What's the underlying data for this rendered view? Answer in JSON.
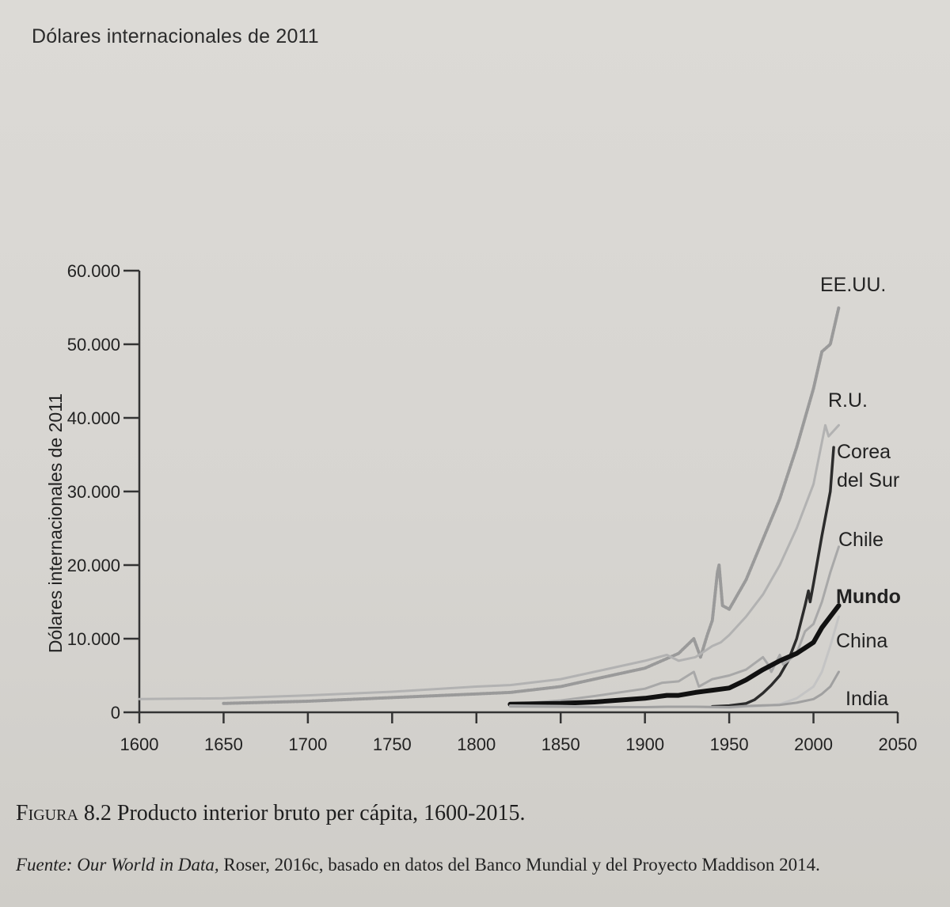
{
  "header": {
    "title": "Dólares internacionales de 2011"
  },
  "caption": {
    "figure_label": "Figura 8.2",
    "text": "Producto interior bruto per cápita, 1600-2015."
  },
  "source": {
    "label": "Fuente:",
    "italic_title": "Our World in Data,",
    "text": "Roser, 2016c, basado en datos del Banco Mundial y del Proyecto Maddison 2014."
  },
  "chart_data": {
    "type": "line",
    "title": "Producto interior bruto per cápita, 1600-2015.",
    "xlabel": "",
    "ylabel": "Dólares internacionales de 2011",
    "xlim": [
      1600,
      2050
    ],
    "ylim": [
      0,
      60000
    ],
    "xticks": [
      1600,
      1650,
      1700,
      1750,
      1800,
      1850,
      1900,
      1950,
      2000,
      2050
    ],
    "xtick_labels": [
      "1600",
      "1650",
      "1700",
      "1750",
      "1800",
      "1850",
      "1900",
      "1950",
      "2000",
      "2050"
    ],
    "yticks": [
      0,
      10000,
      20000,
      30000,
      40000,
      50000,
      60000
    ],
    "ytick_labels": [
      "0",
      "10.000",
      "20.000",
      "30.000",
      "40.000",
      "50.000",
      "60.000"
    ],
    "grid": false,
    "legend": "direct labels at line ends (right)",
    "series": [
      {
        "name": "EE.UU.",
        "color": "#9a9a9a",
        "dash": "dotted",
        "width": 4,
        "x": [
          1650,
          1700,
          1750,
          1800,
          1820,
          1850,
          1870,
          1900,
          1910,
          1920,
          1929,
          1933,
          1937,
          1940,
          1943,
          1944,
          1946,
          1950,
          1960,
          1970,
          1980,
          1990,
          2000,
          2005,
          2010,
          2015
        ],
        "y": [
          1200,
          1500,
          2000,
          2500,
          2700,
          3500,
          4500,
          6000,
          7000,
          8000,
          10000,
          7500,
          10500,
          12500,
          19000,
          20000,
          14500,
          14000,
          18000,
          23500,
          29000,
          36000,
          44000,
          49000,
          50000,
          55000
        ]
      },
      {
        "name": "R.U.",
        "color": "#b2b2b2",
        "dash": "solid",
        "width": 3,
        "x": [
          1600,
          1650,
          1700,
          1750,
          1800,
          1820,
          1850,
          1870,
          1900,
          1913,
          1920,
          1930,
          1940,
          1945,
          1950,
          1960,
          1970,
          1980,
          1990,
          2000,
          2007,
          2009,
          2015
        ],
        "y": [
          1800,
          1900,
          2300,
          2800,
          3500,
          3700,
          4500,
          5500,
          7000,
          7800,
          7000,
          7500,
          9000,
          9500,
          10500,
          13000,
          16000,
          20000,
          25000,
          31000,
          39000,
          37500,
          39000
        ]
      },
      {
        "name": "Corea del Sur",
        "color": "#2c2c2c",
        "dash": "solid",
        "width": 3.5,
        "x": [
          1940,
          1950,
          1960,
          1965,
          1970,
          1975,
          1980,
          1985,
          1990,
          1995,
          1997,
          1998,
          2000,
          2005,
          2010,
          2012
        ],
        "y": [
          800,
          900,
          1200,
          1700,
          2600,
          3700,
          5000,
          7000,
          10000,
          14500,
          16500,
          15000,
          17500,
          24000,
          30000,
          36000
        ]
      },
      {
        "name": "Chile",
        "color": "#a8a8a8",
        "dash": "solid",
        "width": 3,
        "x": [
          1820,
          1850,
          1870,
          1900,
          1910,
          1920,
          1929,
          1932,
          1940,
          1950,
          1960,
          1970,
          1973,
          1975,
          1980,
          1982,
          1985,
          1990,
          1995,
          2000,
          2005,
          2010,
          2015
        ],
        "y": [
          1100,
          1600,
          2200,
          3200,
          4000,
          4200,
          5500,
          3500,
          4500,
          5000,
          5800,
          7500,
          6500,
          5500,
          7800,
          6500,
          7000,
          8000,
          11000,
          12000,
          15000,
          19000,
          22500
        ]
      },
      {
        "name": "Mundo",
        "color": "#111111",
        "dash": "solid",
        "width": 6,
        "x": [
          1820,
          1850,
          1870,
          1900,
          1913,
          1920,
          1930,
          1940,
          1950,
          1960,
          1970,
          1980,
          1990,
          2000,
          2005,
          2010,
          2015
        ],
        "y": [
          1100,
          1200,
          1400,
          1900,
          2300,
          2300,
          2700,
          3000,
          3300,
          4400,
          5800,
          7000,
          8000,
          9500,
          11500,
          13000,
          14500
        ]
      },
      {
        "name": "China",
        "color": "#c4c4c4",
        "dash": "solid",
        "width": 3,
        "x": [
          1820,
          1850,
          1870,
          1900,
          1913,
          1930,
          1950,
          1960,
          1970,
          1980,
          1990,
          2000,
          2005,
          2010,
          2015
        ],
        "y": [
          900,
          850,
          750,
          700,
          750,
          750,
          600,
          800,
          850,
          1100,
          1900,
          3500,
          5500,
          9000,
          13000
        ]
      },
      {
        "name": "India",
        "color": "#a0a0a0",
        "dash": "solid",
        "width": 3,
        "x": [
          1820,
          1850,
          1870,
          1900,
          1913,
          1930,
          1950,
          1960,
          1970,
          1980,
          1990,
          2000,
          2005,
          2010,
          2015
        ],
        "y": [
          800,
          750,
          700,
          700,
          750,
          750,
          700,
          850,
          950,
          1000,
          1300,
          1800,
          2500,
          3500,
          5500
        ]
      }
    ]
  }
}
